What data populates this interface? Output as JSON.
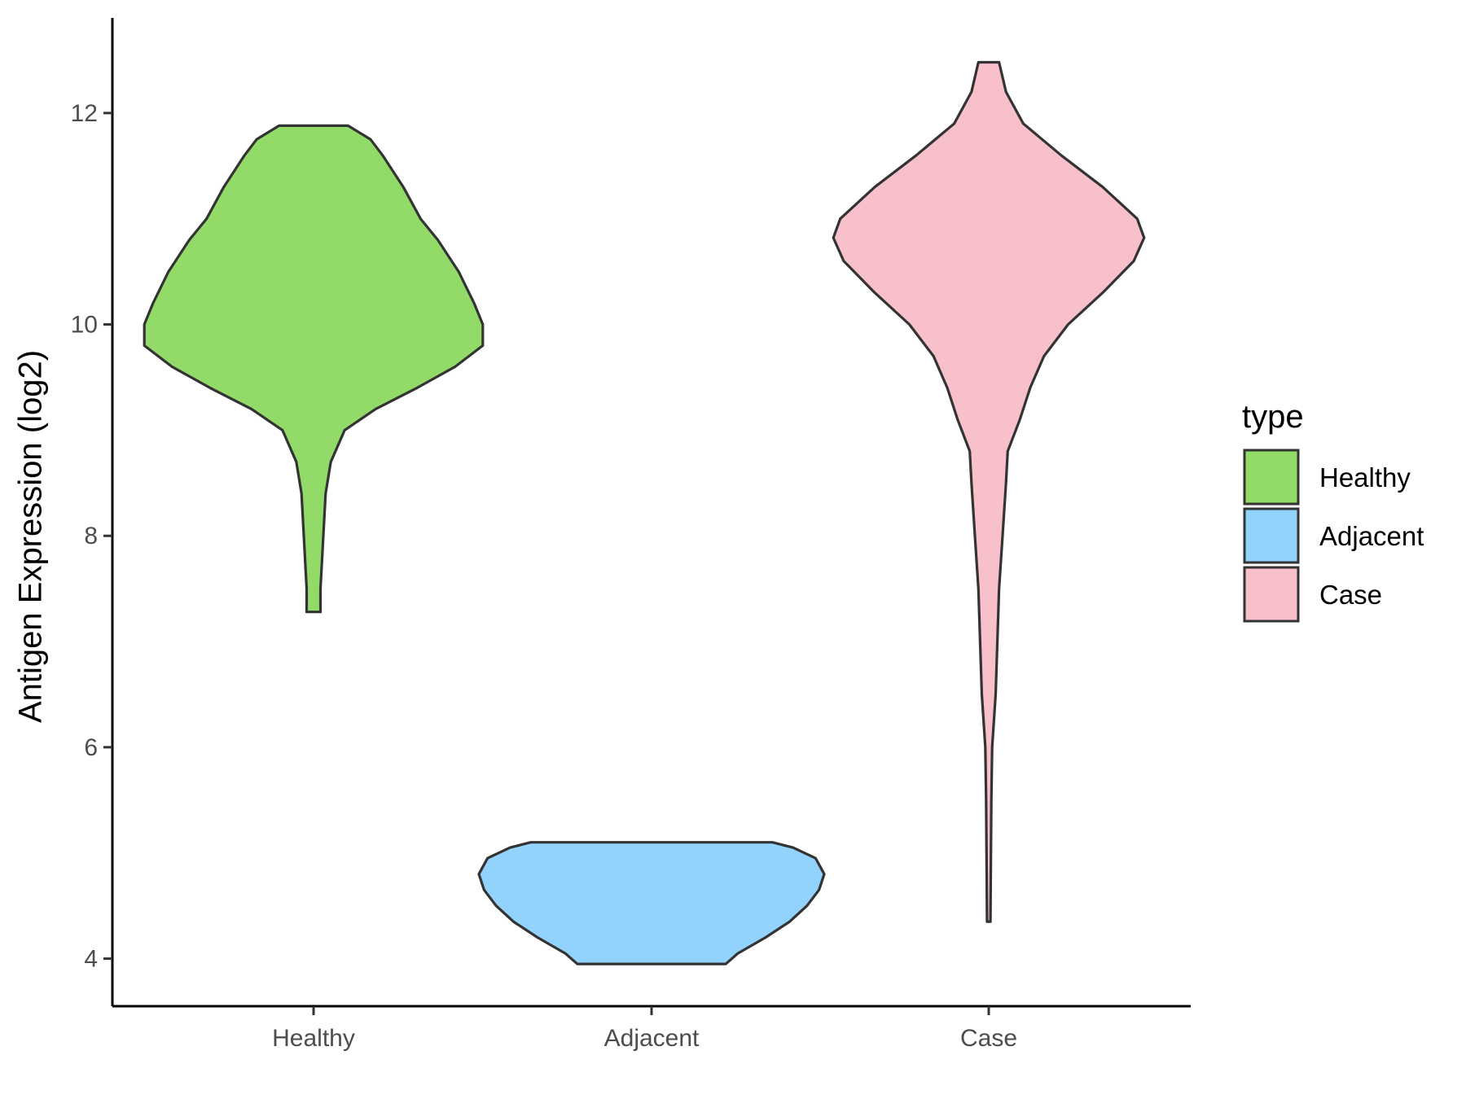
{
  "chart_data": {
    "type": "violin",
    "title": "",
    "xlabel": "",
    "ylabel": "Antigen Expression (log2)",
    "ylim": [
      3.55,
      12.9
    ],
    "y_ticks": [
      4,
      6,
      8,
      10,
      12
    ],
    "categories": [
      "Healthy",
      "Adjacent",
      "Case"
    ],
    "legend": {
      "title": "type",
      "position": "right",
      "entries": [
        "Healthy",
        "Adjacent",
        "Case"
      ]
    },
    "grid": false,
    "series": [
      {
        "name": "Healthy",
        "color": "#93DB69",
        "min": 7.28,
        "max": 11.88,
        "density_profile": [
          [
            7.28,
            0.04
          ],
          [
            7.5,
            0.04
          ],
          [
            7.8,
            0.05
          ],
          [
            8.1,
            0.06
          ],
          [
            8.4,
            0.07
          ],
          [
            8.7,
            0.1
          ],
          [
            9.0,
            0.18
          ],
          [
            9.2,
            0.36
          ],
          [
            9.4,
            0.6
          ],
          [
            9.6,
            0.82
          ],
          [
            9.8,
            0.98
          ],
          [
            10.0,
            0.98
          ],
          [
            10.2,
            0.93
          ],
          [
            10.5,
            0.84
          ],
          [
            10.8,
            0.72
          ],
          [
            11.0,
            0.62
          ],
          [
            11.3,
            0.52
          ],
          [
            11.6,
            0.4
          ],
          [
            11.75,
            0.33
          ],
          [
            11.88,
            0.2
          ]
        ]
      },
      {
        "name": "Adjacent",
        "color": "#92D3FE",
        "min": 3.95,
        "max": 5.1,
        "density_profile": [
          [
            3.95,
            0.43
          ],
          [
            4.05,
            0.5
          ],
          [
            4.2,
            0.66
          ],
          [
            4.35,
            0.8
          ],
          [
            4.5,
            0.9
          ],
          [
            4.65,
            0.97
          ],
          [
            4.8,
            1.0
          ],
          [
            4.95,
            0.95
          ],
          [
            5.05,
            0.82
          ],
          [
            5.1,
            0.7
          ]
        ]
      },
      {
        "name": "Case",
        "color": "#F7C0CB",
        "min": 4.35,
        "max": 12.48,
        "density_profile": [
          [
            4.35,
            0.01
          ],
          [
            4.8,
            0.012
          ],
          [
            5.5,
            0.015
          ],
          [
            6.0,
            0.02
          ],
          [
            6.5,
            0.04
          ],
          [
            7.0,
            0.05
          ],
          [
            7.5,
            0.06
          ],
          [
            8.0,
            0.08
          ],
          [
            8.5,
            0.1
          ],
          [
            8.8,
            0.11
          ],
          [
            9.1,
            0.18
          ],
          [
            9.4,
            0.24
          ],
          [
            9.7,
            0.32
          ],
          [
            10.0,
            0.46
          ],
          [
            10.3,
            0.66
          ],
          [
            10.6,
            0.84
          ],
          [
            10.82,
            0.9
          ],
          [
            11.0,
            0.86
          ],
          [
            11.3,
            0.66
          ],
          [
            11.6,
            0.42
          ],
          [
            11.9,
            0.2
          ],
          [
            12.2,
            0.1
          ],
          [
            12.48,
            0.06
          ]
        ]
      }
    ]
  }
}
